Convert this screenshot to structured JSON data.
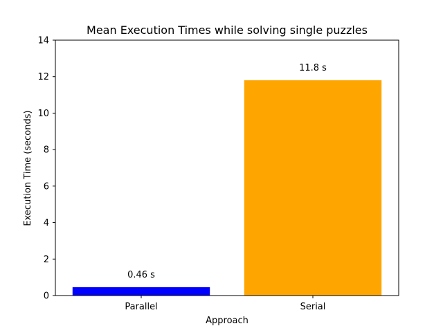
{
  "chart_data": {
    "type": "bar",
    "title": "Mean Execution Times while solving single puzzles",
    "xlabel": "Approach",
    "ylabel": "Execution Time (seconds)",
    "categories": [
      "Parallel",
      "Serial"
    ],
    "values": [
      0.46,
      11.8
    ],
    "value_labels": [
      "0.46 s",
      "11.8 s"
    ],
    "bar_colors": [
      "#0000ff",
      "#ffa500"
    ],
    "ylim": [
      0,
      14
    ],
    "yticks": [
      0,
      2,
      4,
      6,
      8,
      10,
      12,
      14
    ],
    "grid": false,
    "legend": false
  }
}
